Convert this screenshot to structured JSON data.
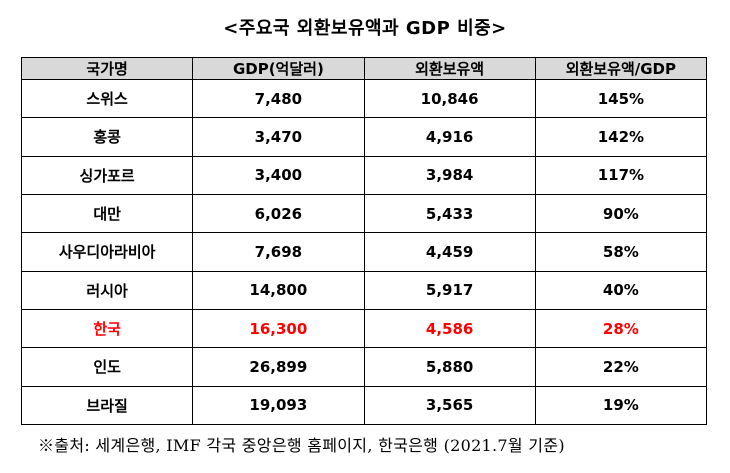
{
  "title": "<주요국 외환보유액과 GDP 비중>",
  "table": {
    "headers": [
      "국가명",
      "GDP(억달러)",
      "외환보유액",
      "외환보유액/GDP"
    ],
    "rows": [
      {
        "country": "스위스",
        "gdp": "7,480",
        "reserves": "10,846",
        "ratio": "145%",
        "highlight": false
      },
      {
        "country": "홍콩",
        "gdp": "3,470",
        "reserves": "4,916",
        "ratio": "142%",
        "highlight": false
      },
      {
        "country": "싱가포르",
        "gdp": "3,400",
        "reserves": "3,984",
        "ratio": "117%",
        "highlight": false
      },
      {
        "country": "대만",
        "gdp": "6,026",
        "reserves": "5,433",
        "ratio": "90%",
        "highlight": false
      },
      {
        "country": "사우디아라비아",
        "gdp": "7,698",
        "reserves": "4,459",
        "ratio": "58%",
        "highlight": false
      },
      {
        "country": "러시아",
        "gdp": "14,800",
        "reserves": "5,917",
        "ratio": "40%",
        "highlight": false
      },
      {
        "country": "한국",
        "gdp": "16,300",
        "reserves": "4,586",
        "ratio": "28%",
        "highlight": true
      },
      {
        "country": "인도",
        "gdp": "26,899",
        "reserves": "5,880",
        "ratio": "22%",
        "highlight": false
      },
      {
        "country": "브라질",
        "gdp": "19,093",
        "reserves": "3,565",
        "ratio": "19%",
        "highlight": false
      }
    ],
    "header_bg": "#d9d9d9",
    "highlight_color": "#ff0000"
  },
  "footnote": "※출처: 세계은행, IMF 각국 중앙은행 홈페이지, 한국은행 (2021.7월 기준)"
}
